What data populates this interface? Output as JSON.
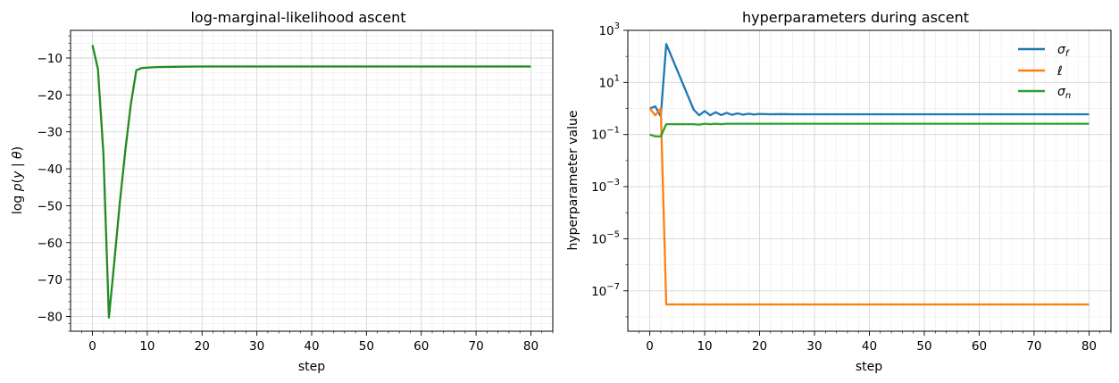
{
  "chart_data": [
    {
      "type": "line",
      "title": "log-marginal-likelihood ascent",
      "xlabel": "step",
      "ylabel": "log p(y | θ)",
      "xlim": [
        -4,
        84
      ],
      "ylim": [
        -84,
        -2.5
      ],
      "xticks": [
        0,
        10,
        20,
        30,
        40,
        50,
        60,
        70,
        80
      ],
      "yticks": [
        -80,
        -70,
        -60,
        -50,
        -40,
        -30,
        -20,
        -10
      ],
      "ytick_labels": [
        "−80",
        "−70",
        "−60",
        "−50",
        "−40",
        "−30",
        "−20",
        "−10"
      ],
      "grid": true,
      "series": [
        {
          "color": "#228b22",
          "x": [
            0,
            1,
            2,
            3,
            4,
            5,
            6,
            7,
            8,
            9,
            10,
            11,
            12,
            14,
            16,
            20,
            30,
            40,
            50,
            60,
            70,
            80
          ],
          "y": [
            -6.5,
            -13,
            -36,
            -80.3,
            -65,
            -49,
            -35,
            -22.5,
            -13.3,
            -12.7,
            -12.6,
            -12.5,
            -12.45,
            -12.4,
            -12.35,
            -12.3,
            -12.3,
            -12.3,
            -12.3,
            -12.3,
            -12.3,
            -12.3
          ]
        }
      ]
    },
    {
      "type": "line",
      "title": "hyperparameters during ascent",
      "xlabel": "step",
      "ylabel": "hyperparameter value",
      "yscale": "log",
      "xlim": [
        -4,
        84
      ],
      "ylim_log10": [
        -8.55,
        3
      ],
      "xticks": [
        0,
        10,
        20,
        30,
        40,
        50,
        60,
        70,
        80
      ],
      "yticks_exp": [
        -7,
        -5,
        -3,
        -1,
        1,
        3
      ],
      "grid": true,
      "legend_loc": "upper right",
      "series": [
        {
          "name": "σf",
          "color": "#1f77b4",
          "x": [
            0,
            1,
            2,
            3,
            8,
            9,
            10,
            11,
            12,
            13,
            14,
            15,
            16,
            17,
            18,
            19,
            20,
            22,
            24,
            26,
            30,
            40,
            50,
            60,
            70,
            80
          ],
          "y": [
            1.0,
            1.2,
            0.5,
            300,
            0.9,
            0.55,
            0.8,
            0.55,
            0.72,
            0.56,
            0.68,
            0.57,
            0.65,
            0.58,
            0.63,
            0.59,
            0.62,
            0.6,
            0.61,
            0.6,
            0.6,
            0.6,
            0.6,
            0.6,
            0.6,
            0.6
          ]
        },
        {
          "name": "ℓ",
          "color": "#ff7f0e",
          "x": [
            0,
            1,
            2,
            3,
            10,
            20,
            30,
            40,
            50,
            60,
            70,
            80
          ],
          "y": [
            1.0,
            0.55,
            1.0,
            3e-08,
            3e-08,
            3e-08,
            3e-08,
            3e-08,
            3e-08,
            3e-08,
            3e-08,
            3e-08
          ]
        },
        {
          "name": "σn",
          "color": "#2ca02c",
          "x": [
            0,
            1,
            2,
            3,
            8,
            9,
            10,
            11,
            12,
            13,
            14,
            16,
            20,
            30,
            40,
            50,
            60,
            70,
            80
          ],
          "y": [
            0.1,
            0.085,
            0.085,
            0.25,
            0.25,
            0.24,
            0.26,
            0.25,
            0.26,
            0.25,
            0.26,
            0.26,
            0.26,
            0.26,
            0.26,
            0.26,
            0.26,
            0.26,
            0.26
          ]
        }
      ]
    }
  ]
}
